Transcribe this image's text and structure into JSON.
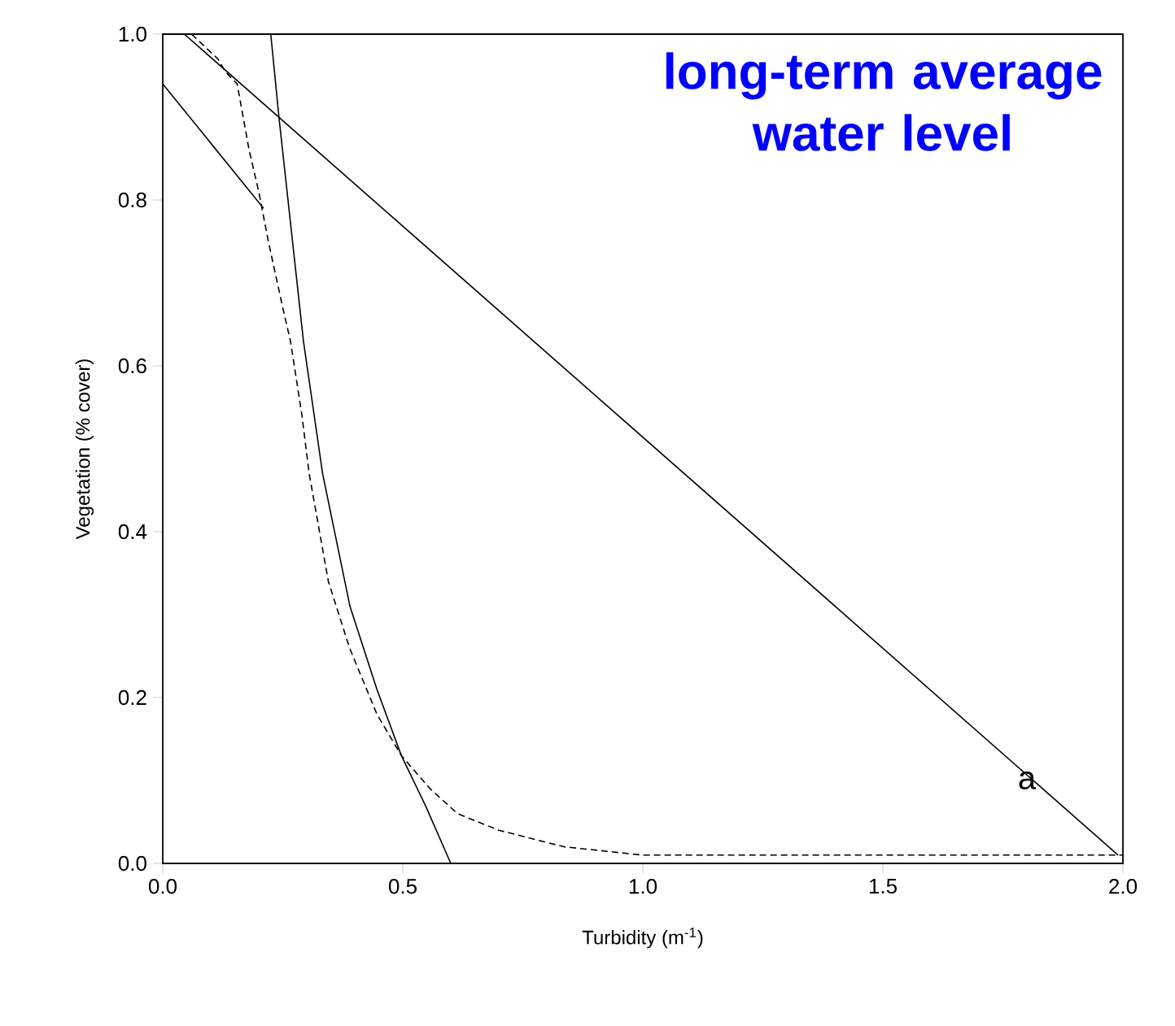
{
  "chart_data": {
    "type": "line",
    "title": "long-term average water level",
    "xlabel": "Turbidity (m$^{-1}$)",
    "ylabel": "Vegetation (% cover)",
    "xlim": [
      0,
      2
    ],
    "ylim": [
      0,
      1
    ],
    "xticks": [
      {
        "value": 0,
        "label": "0.0"
      },
      {
        "value": 0.5,
        "label": "0.5"
      },
      {
        "value": 1,
        "label": "1.0"
      },
      {
        "value": 1.5,
        "label": "1.5"
      },
      {
        "value": 2,
        "label": "2.0"
      }
    ],
    "yticks": [
      {
        "value": 0,
        "label": "0.0"
      },
      {
        "value": 0.2,
        "label": "0.2"
      },
      {
        "value": 0.4,
        "label": "0.4"
      },
      {
        "value": 0.6,
        "label": "0.6"
      },
      {
        "value": 0.8,
        "label": "0.8"
      },
      {
        "value": 1,
        "label": "1.0"
      }
    ],
    "grid": false,
    "marker": "none",
    "annotations": [
      {
        "text": "a",
        "x": 1.8,
        "y": 0.1
      }
    ],
    "series": [
      {
        "color": "#000000",
        "line_style": "solid",
        "x": [
          0.045,
          1.99
        ],
        "values": [
          1.0,
          0.01
        ]
      },
      {
        "color": "#000000",
        "line_style": "solid",
        "x": [
          0.0,
          0.21
        ],
        "values": [
          0.94,
          0.79
        ]
      },
      {
        "color": "#000000",
        "line_style": "solid",
        "x": [
          0.225,
          0.242,
          0.293,
          0.333,
          0.39,
          0.446,
          0.497,
          0.547,
          0.6
        ],
        "values": [
          1.0,
          0.9,
          0.63,
          0.47,
          0.31,
          0.21,
          0.13,
          0.07,
          0.0
        ]
      },
      {
        "color": "#000000",
        "line_style": "dashed",
        "x": [
          0.06,
          0.115,
          0.13,
          0.155,
          0.18,
          0.2,
          0.22,
          0.25,
          0.266,
          0.29,
          0.305,
          0.345,
          0.389,
          0.446,
          0.497,
          0.557,
          0.614,
          0.7,
          0.836,
          1.0,
          1.14,
          1.5,
          2.0
        ],
        "values": [
          1.0,
          0.97,
          0.955,
          0.94,
          0.86,
          0.81,
          0.75,
          0.67,
          0.63,
          0.54,
          0.47,
          0.34,
          0.26,
          0.18,
          0.13,
          0.09,
          0.06,
          0.04,
          0.02,
          0.01,
          0.01,
          0.01,
          0.01
        ]
      }
    ]
  }
}
